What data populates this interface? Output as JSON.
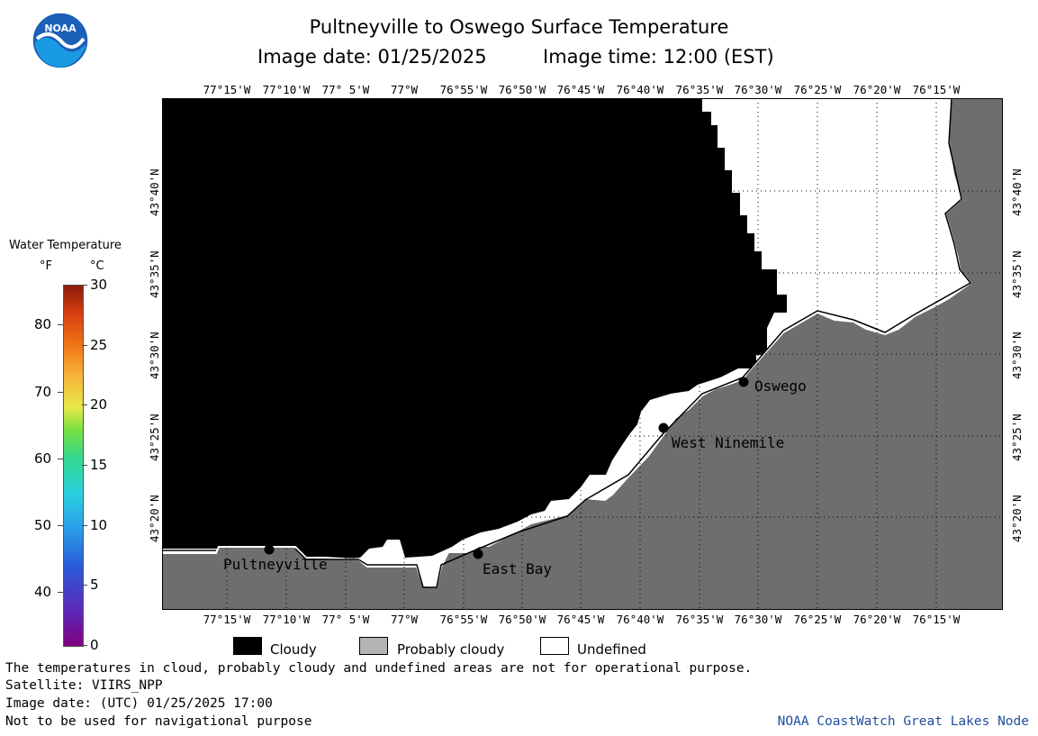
{
  "header": {
    "title": "Pultneyville to Oswego Surface Temperature",
    "date_label": "Image date: 01/25/2025",
    "time_label": "Image time: 12:00 (EST)",
    "logo_text": "NOAA"
  },
  "map": {
    "lon_ticks": [
      "77°15'W",
      "77°10'W",
      "77° 5'W",
      "77°W",
      "76°55'W",
      "76°50'W",
      "76°45'W",
      "76°40'W",
      "76°35'W",
      "76°30'W",
      "76°25'W",
      "76°20'W",
      "76°15'W"
    ],
    "lat_ticks": [
      "43°40'N",
      "43°35'N",
      "43°30'N",
      "43°25'N",
      "43°20'N"
    ],
    "places": [
      "Pultneyville",
      "East Bay",
      "West Ninemile",
      "Oswego"
    ],
    "colors": {
      "cloudy": "#000000",
      "land": "#6e6e6e",
      "undefined": "#ffffff",
      "grid": "#000000"
    }
  },
  "colorbar": {
    "title": "Water Temperature",
    "unit_f": "°F",
    "unit_c": "°C",
    "f_ticks": [
      "80",
      "70",
      "60",
      "50",
      "40"
    ],
    "c_ticks": [
      "30",
      "25",
      "20",
      "15",
      "10",
      "5",
      "0"
    ]
  },
  "legend": {
    "cloudy": "Cloudy",
    "probably_cloudy": "Probably cloudy",
    "undefined": "Undefined",
    "colors": {
      "cloudy": "#000000",
      "probably_cloudy": "#b4b4b4",
      "undefined": "#ffffff"
    }
  },
  "footer": {
    "disclaimer": "The temperatures in cloud, probably cloudy and undefined areas are not for operational purpose.",
    "satellite": "Satellite: VIIRS_NPP",
    "utc_date": "Image date: (UTC) 01/25/2025  17:00",
    "nav_warning": "Not to be used for navigational purpose",
    "credit": "NOAA CoastWatch Great Lakes Node"
  }
}
